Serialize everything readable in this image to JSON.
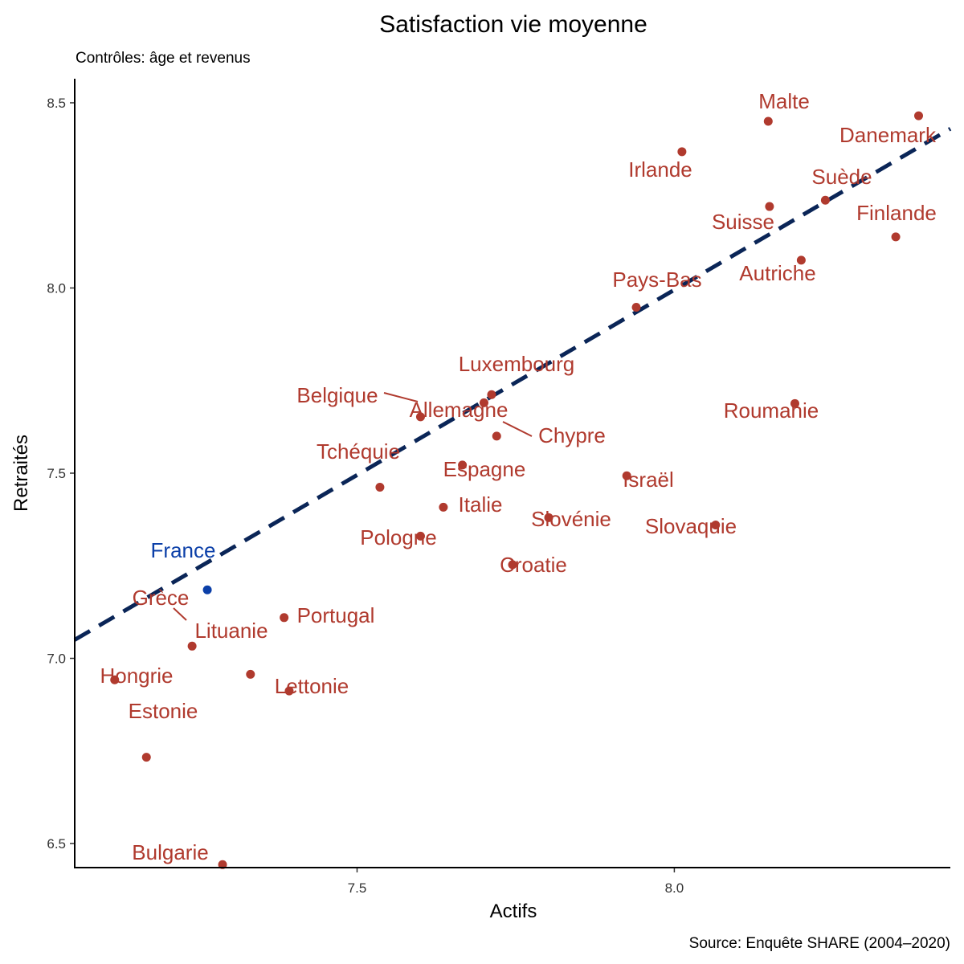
{
  "colors": {
    "point": "#b03a2e",
    "highlight": "#0b3fa8",
    "trend": "#0a2557",
    "axis": "#000000"
  },
  "chart_data": {
    "type": "scatter",
    "title": "Satisfaction vie moyenne",
    "subtitle": "Contrôles: âge et revenus",
    "caption": "Source: Enquête SHARE (2004–2020)",
    "xlabel": "Actifs",
    "ylabel": "Retraités",
    "xlim": [
      7.055,
      8.435
    ],
    "ylim": [
      6.435,
      8.565
    ],
    "xticks": [
      7.5,
      8.0
    ],
    "xtick_labels": [
      "7.5",
      "8.0"
    ],
    "yticks": [
      6.5,
      7.0,
      7.5,
      8.0,
      8.5
    ],
    "ytick_labels": [
      "6.5",
      "7.0",
      "7.5",
      "8.0",
      "8.5"
    ],
    "grid": false,
    "trend_line": {
      "style": "dashed",
      "x": [
        7.055,
        8.435
      ],
      "y": [
        7.05,
        8.43
      ]
    },
    "points": [
      {
        "name": "France",
        "x": 7.264,
        "y": 7.185,
        "highlight": true
      },
      {
        "name": "Malte",
        "x": 8.148,
        "y": 8.45
      },
      {
        "name": "Danemark",
        "x": 8.385,
        "y": 8.465
      },
      {
        "name": "Irlande",
        "x": 8.012,
        "y": 8.368
      },
      {
        "name": "Suède",
        "x": 8.238,
        "y": 8.237
      },
      {
        "name": "Suisse",
        "x": 8.15,
        "y": 8.22
      },
      {
        "name": "Finlande",
        "x": 8.349,
        "y": 8.138
      },
      {
        "name": "Autriche",
        "x": 8.2,
        "y": 8.075
      },
      {
        "name": "Pays-Bas",
        "x": 7.94,
        "y": 7.948
      },
      {
        "name": "Luxembourg",
        "x": 7.712,
        "y": 7.712
      },
      {
        "name": "Roumanie",
        "x": 8.19,
        "y": 7.688
      },
      {
        "name": "Belgique",
        "x": 7.6,
        "y": 7.652
      },
      {
        "name": "Allemagne",
        "x": 7.7,
        "y": 7.69
      },
      {
        "name": "Chypre",
        "x": 7.72,
        "y": 7.6
      },
      {
        "name": "Tchéquie",
        "x": 7.536,
        "y": 7.462
      },
      {
        "name": "Espagne",
        "x": 7.666,
        "y": 7.522
      },
      {
        "name": "Israël",
        "x": 7.925,
        "y": 7.493
      },
      {
        "name": "Italie",
        "x": 7.636,
        "y": 7.408
      },
      {
        "name": "Slovénie",
        "x": 7.802,
        "y": 7.38
      },
      {
        "name": "Slovaquie",
        "x": 8.065,
        "y": 7.36
      },
      {
        "name": "Pologne",
        "x": 7.6,
        "y": 7.33
      },
      {
        "name": "Croatie",
        "x": 7.745,
        "y": 7.253
      },
      {
        "name": "Grèce",
        "x": 7.24,
        "y": 7.033
      },
      {
        "name": "Portugal",
        "x": 7.385,
        "y": 7.11
      },
      {
        "name": "Lituanie",
        "x": 7.332,
        "y": 6.957
      },
      {
        "name": "Lettonie",
        "x": 7.393,
        "y": 6.912
      },
      {
        "name": "Hongrie",
        "x": 7.118,
        "y": 6.942
      },
      {
        "name": "Estonie",
        "x": 7.168,
        "y": 6.733
      },
      {
        "name": "Bulgarie",
        "x": 7.288,
        "y": 6.443
      }
    ]
  }
}
